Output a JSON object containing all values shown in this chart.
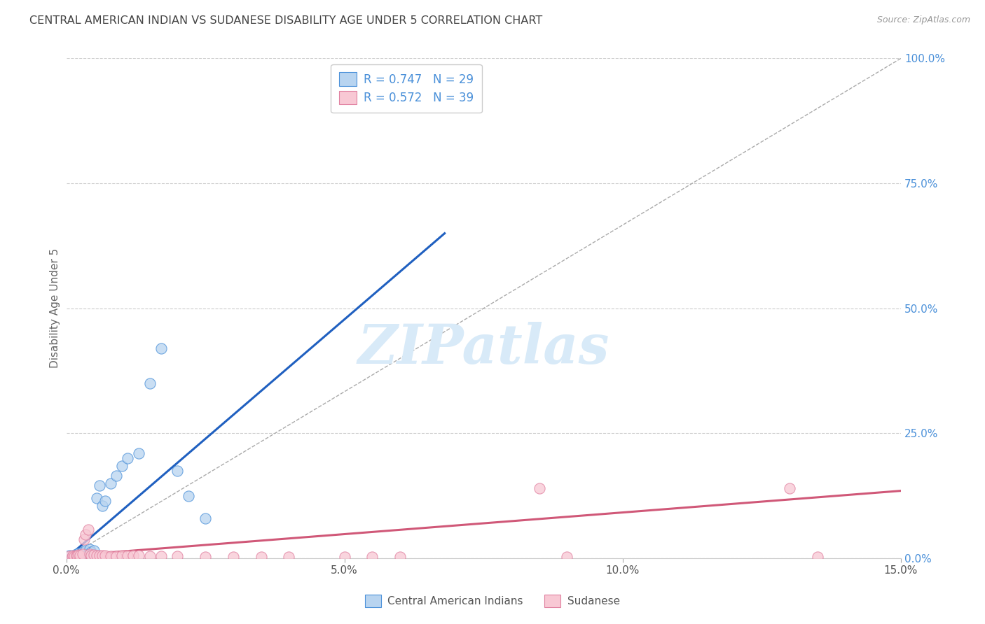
{
  "title": "CENTRAL AMERICAN INDIAN VS SUDANESE DISABILITY AGE UNDER 5 CORRELATION CHART",
  "source": "Source: ZipAtlas.com",
  "ylabel": "Disability Age Under 5",
  "xmin": 0.0,
  "xmax": 0.15,
  "ymin": 0.0,
  "ymax": 1.0,
  "xticks": [
    0.0,
    0.05,
    0.1,
    0.15
  ],
  "xtick_labels": [
    "0.0%",
    "5.0%",
    "10.0%",
    "15.0%"
  ],
  "ytick_labels_right": [
    "0.0%",
    "25.0%",
    "50.0%",
    "75.0%",
    "100.0%"
  ],
  "ytick_vals_right": [
    0.0,
    0.25,
    0.5,
    0.75,
    1.0
  ],
  "blue_R": 0.747,
  "blue_N": 29,
  "pink_R": 0.572,
  "pink_N": 39,
  "blue_color": "#B8D4F0",
  "blue_edge_color": "#4A90D9",
  "blue_line_color": "#2060C0",
  "pink_color": "#F8C8D4",
  "pink_edge_color": "#E080A0",
  "pink_line_color": "#D05878",
  "blue_scatter_x": [
    0.0005,
    0.001,
    0.0012,
    0.0015,
    0.0018,
    0.002,
    0.0022,
    0.0025,
    0.003,
    0.0032,
    0.0035,
    0.004,
    0.0042,
    0.0045,
    0.005,
    0.0055,
    0.006,
    0.0065,
    0.007,
    0.008,
    0.009,
    0.01,
    0.011,
    0.013,
    0.015,
    0.017,
    0.02,
    0.022,
    0.025
  ],
  "blue_scatter_y": [
    0.005,
    0.003,
    0.006,
    0.004,
    0.008,
    0.005,
    0.01,
    0.008,
    0.012,
    0.007,
    0.015,
    0.008,
    0.018,
    0.012,
    0.015,
    0.12,
    0.145,
    0.105,
    0.115,
    0.15,
    0.165,
    0.185,
    0.2,
    0.21,
    0.35,
    0.42,
    0.175,
    0.125,
    0.08
  ],
  "pink_scatter_x": [
    0.0005,
    0.001,
    0.0012,
    0.0015,
    0.0018,
    0.002,
    0.0022,
    0.0025,
    0.003,
    0.0032,
    0.0035,
    0.004,
    0.0042,
    0.0045,
    0.005,
    0.0055,
    0.006,
    0.0065,
    0.007,
    0.008,
    0.009,
    0.01,
    0.011,
    0.012,
    0.013,
    0.015,
    0.017,
    0.02,
    0.025,
    0.03,
    0.035,
    0.04,
    0.05,
    0.055,
    0.06,
    0.085,
    0.09,
    0.13,
    0.135
  ],
  "pink_scatter_y": [
    0.004,
    0.003,
    0.005,
    0.004,
    0.006,
    0.005,
    0.007,
    0.005,
    0.008,
    0.038,
    0.048,
    0.058,
    0.008,
    0.006,
    0.007,
    0.006,
    0.005,
    0.005,
    0.005,
    0.004,
    0.004,
    0.005,
    0.005,
    0.005,
    0.005,
    0.004,
    0.004,
    0.004,
    0.003,
    0.003,
    0.003,
    0.003,
    0.003,
    0.003,
    0.003,
    0.14,
    0.003,
    0.14,
    0.003
  ],
  "blue_line_x": [
    0.0,
    0.068
  ],
  "blue_line_y": [
    0.0,
    0.65
  ],
  "pink_line_x": [
    0.0,
    0.15
  ],
  "pink_line_y": [
    0.005,
    0.135
  ],
  "ref_line_x": [
    0.0,
    0.15
  ],
  "ref_line_y": [
    0.0,
    1.0
  ],
  "legend_label_blue": "Central American Indians",
  "legend_label_pink": "Sudanese",
  "background_color": "#FFFFFF",
  "grid_color": "#CCCCCC",
  "title_color": "#444444",
  "axis_label_color": "#666666",
  "right_axis_color": "#4A90D9",
  "watermark_color": "#D8EAF8"
}
